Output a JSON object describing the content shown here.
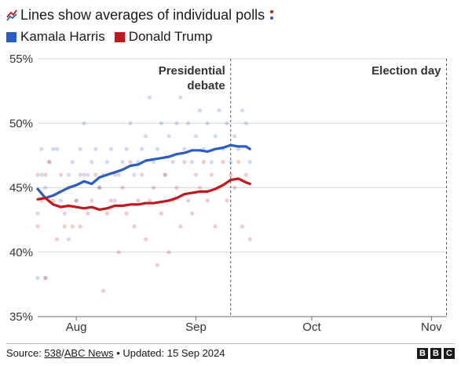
{
  "header": {
    "title": "Lines show averages of individual polls",
    "legend": [
      {
        "label": "Kamala Harris",
        "color": "#2a5bc7"
      },
      {
        "label": "Donald Trump",
        "color": "#c4161c"
      }
    ]
  },
  "footer": {
    "source_prefix": "Source: ",
    "source_link_1": "538",
    "source_sep": "/",
    "source_link_2": "ABC News",
    "updated": " • Updated: 15 Sep 2024",
    "logo_letters": [
      "B",
      "B",
      "C"
    ]
  },
  "chart_data": {
    "type": "line",
    "title": "Lines show averages of individual polls",
    "x_axis": {
      "ticks": [
        "Aug",
        "Sep",
        "Oct",
        "Nov"
      ],
      "tick_dates": [
        "2024-08-01",
        "2024-09-01",
        "2024-10-01",
        "2024-11-01"
      ],
      "range": [
        "2024-07-22",
        "2024-11-05"
      ]
    },
    "y_axis": {
      "range": [
        35,
        55
      ],
      "ticks": [
        35,
        40,
        45,
        50,
        55
      ],
      "tick_labels": [
        "35%",
        "40%",
        "45%",
        "50%",
        "55%"
      ],
      "grid": true
    },
    "annotations": [
      {
        "label_lines": [
          "Presidential",
          "debate"
        ],
        "date": "2024-09-10",
        "style": "dashed-line"
      },
      {
        "label_lines": [
          "Election day"
        ],
        "date": "2024-11-05",
        "style": "dashed-line"
      }
    ],
    "series": [
      {
        "name": "Kamala Harris",
        "color": "#2a5bc7",
        "dates": [
          "2024-07-22",
          "2024-07-24",
          "2024-07-26",
          "2024-07-28",
          "2024-07-30",
          "2024-08-01",
          "2024-08-03",
          "2024-08-05",
          "2024-08-07",
          "2024-08-09",
          "2024-08-11",
          "2024-08-13",
          "2024-08-15",
          "2024-08-17",
          "2024-08-19",
          "2024-08-21",
          "2024-08-23",
          "2024-08-25",
          "2024-08-27",
          "2024-08-29",
          "2024-08-31",
          "2024-09-02",
          "2024-09-04",
          "2024-09-06",
          "2024-09-08",
          "2024-09-10",
          "2024-09-12",
          "2024-09-14",
          "2024-09-15"
        ],
        "values": [
          44.9,
          44.2,
          44.4,
          44.7,
          45.0,
          45.2,
          45.5,
          45.3,
          45.8,
          46.0,
          46.2,
          46.4,
          46.7,
          46.8,
          47.1,
          47.2,
          47.3,
          47.4,
          47.6,
          47.7,
          47.9,
          47.9,
          47.8,
          48.0,
          48.1,
          48.3,
          48.2,
          48.2,
          48.0
        ]
      },
      {
        "name": "Donald Trump",
        "color": "#c4161c",
        "dates": [
          "2024-07-22",
          "2024-07-24",
          "2024-07-26",
          "2024-07-28",
          "2024-07-30",
          "2024-08-01",
          "2024-08-03",
          "2024-08-05",
          "2024-08-07",
          "2024-08-09",
          "2024-08-11",
          "2024-08-13",
          "2024-08-15",
          "2024-08-17",
          "2024-08-19",
          "2024-08-21",
          "2024-08-23",
          "2024-08-25",
          "2024-08-27",
          "2024-08-29",
          "2024-08-31",
          "2024-09-02",
          "2024-09-04",
          "2024-09-06",
          "2024-09-08",
          "2024-09-10",
          "2024-09-12",
          "2024-09-14",
          "2024-09-15"
        ],
        "values": [
          44.1,
          44.2,
          43.7,
          43.5,
          43.6,
          43.5,
          43.4,
          43.5,
          43.3,
          43.4,
          43.6,
          43.6,
          43.7,
          43.7,
          43.8,
          43.8,
          43.9,
          44.0,
          44.2,
          44.5,
          44.6,
          44.7,
          44.7,
          44.9,
          45.2,
          45.6,
          45.7,
          45.4,
          45.3
        ]
      }
    ],
    "polls": [
      {
        "series": "Kamala Harris",
        "points": [
          [
            "2024-07-22",
            43
          ],
          [
            "2024-07-22",
            38
          ],
          [
            "2024-07-23",
            46
          ],
          [
            "2024-07-23",
            48
          ],
          [
            "2024-07-24",
            38
          ],
          [
            "2024-07-24",
            45
          ],
          [
            "2024-07-25",
            47
          ],
          [
            "2024-07-26",
            48
          ],
          [
            "2024-07-27",
            48
          ],
          [
            "2024-07-28",
            44
          ],
          [
            "2024-07-29",
            43
          ],
          [
            "2024-07-30",
            46
          ],
          [
            "2024-07-30",
            41
          ],
          [
            "2024-07-31",
            47
          ],
          [
            "2024-08-01",
            44
          ],
          [
            "2024-08-02",
            46
          ],
          [
            "2024-08-02",
            48
          ],
          [
            "2024-08-03",
            50
          ],
          [
            "2024-08-04",
            46
          ],
          [
            "2024-08-05",
            47
          ],
          [
            "2024-08-06",
            48
          ],
          [
            "2024-08-07",
            45
          ],
          [
            "2024-08-08",
            46
          ],
          [
            "2024-08-09",
            47
          ],
          [
            "2024-08-10",
            48
          ],
          [
            "2024-08-11",
            44
          ],
          [
            "2024-08-12",
            46
          ],
          [
            "2024-08-13",
            47
          ],
          [
            "2024-08-14",
            48
          ],
          [
            "2024-08-15",
            50
          ],
          [
            "2024-08-16",
            46
          ],
          [
            "2024-08-17",
            47
          ],
          [
            "2024-08-18",
            48
          ],
          [
            "2024-08-19",
            49
          ],
          [
            "2024-08-20",
            52
          ],
          [
            "2024-08-21",
            47
          ],
          [
            "2024-08-22",
            48
          ],
          [
            "2024-08-23",
            50
          ],
          [
            "2024-08-24",
            46
          ],
          [
            "2024-08-25",
            49
          ],
          [
            "2024-08-26",
            47
          ],
          [
            "2024-08-27",
            50
          ],
          [
            "2024-08-28",
            52
          ],
          [
            "2024-08-29",
            48
          ],
          [
            "2024-08-30",
            50
          ],
          [
            "2024-08-31",
            47
          ],
          [
            "2024-09-01",
            49
          ],
          [
            "2024-09-02",
            51
          ],
          [
            "2024-09-03",
            48
          ],
          [
            "2024-09-04",
            50
          ],
          [
            "2024-09-05",
            47
          ],
          [
            "2024-09-06",
            49
          ],
          [
            "2024-09-07",
            51
          ],
          [
            "2024-09-08",
            48
          ],
          [
            "2024-09-09",
            50
          ],
          [
            "2024-09-10",
            47
          ],
          [
            "2024-09-11",
            49
          ],
          [
            "2024-09-12",
            48
          ],
          [
            "2024-09-13",
            51
          ],
          [
            "2024-09-14",
            50
          ],
          [
            "2024-09-15",
            47
          ]
        ]
      },
      {
        "series": "Donald Trump",
        "points": [
          [
            "2024-07-22",
            46
          ],
          [
            "2024-07-22",
            42
          ],
          [
            "2024-07-23",
            44
          ],
          [
            "2024-07-24",
            46
          ],
          [
            "2024-07-24",
            38
          ],
          [
            "2024-07-25",
            47
          ],
          [
            "2024-07-26",
            44
          ],
          [
            "2024-07-27",
            41
          ],
          [
            "2024-07-28",
            46
          ],
          [
            "2024-07-29",
            42
          ],
          [
            "2024-07-30",
            45
          ],
          [
            "2024-07-31",
            42
          ],
          [
            "2024-08-01",
            44
          ],
          [
            "2024-08-02",
            42
          ],
          [
            "2024-08-03",
            46
          ],
          [
            "2024-08-04",
            43
          ],
          [
            "2024-08-05",
            44
          ],
          [
            "2024-08-06",
            46
          ],
          [
            "2024-08-07",
            45
          ],
          [
            "2024-08-08",
            37
          ],
          [
            "2024-08-09",
            43
          ],
          [
            "2024-08-10",
            44
          ],
          [
            "2024-08-11",
            46
          ],
          [
            "2024-08-12",
            40
          ],
          [
            "2024-08-13",
            45
          ],
          [
            "2024-08-14",
            43
          ],
          [
            "2024-08-15",
            47
          ],
          [
            "2024-08-16",
            42
          ],
          [
            "2024-08-17",
            44
          ],
          [
            "2024-08-18",
            46
          ],
          [
            "2024-08-19",
            41
          ],
          [
            "2024-08-20",
            44
          ],
          [
            "2024-08-21",
            45
          ],
          [
            "2024-08-22",
            39
          ],
          [
            "2024-08-23",
            43
          ],
          [
            "2024-08-24",
            46
          ],
          [
            "2024-08-25",
            40
          ],
          [
            "2024-08-26",
            44
          ],
          [
            "2024-08-27",
            45
          ],
          [
            "2024-08-28",
            42
          ],
          [
            "2024-08-29",
            47
          ],
          [
            "2024-08-30",
            44
          ],
          [
            "2024-08-31",
            43
          ],
          [
            "2024-09-01",
            46
          ],
          [
            "2024-09-02",
            45
          ],
          [
            "2024-09-03",
            47
          ],
          [
            "2024-09-04",
            44
          ],
          [
            "2024-09-05",
            46
          ],
          [
            "2024-09-06",
            42
          ],
          [
            "2024-09-07",
            45
          ],
          [
            "2024-09-08",
            47
          ],
          [
            "2024-09-09",
            44
          ],
          [
            "2024-09-10",
            46
          ],
          [
            "2024-09-11",
            45
          ],
          [
            "2024-09-12",
            47
          ],
          [
            "2024-09-13",
            42
          ],
          [
            "2024-09-14",
            46
          ],
          [
            "2024-09-15",
            41
          ]
        ]
      }
    ]
  }
}
